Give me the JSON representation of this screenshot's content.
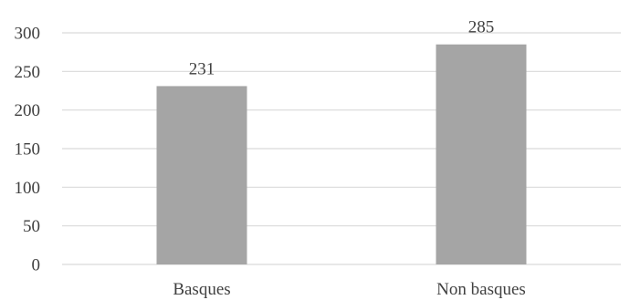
{
  "colors": {
    "bar": "#a5a5a5",
    "gridline": "#d9d9d9",
    "text": "#404040"
  },
  "chart_data": {
    "type": "bar",
    "title": "",
    "xlabel": "",
    "ylabel": "",
    "categories": [
      "Basques",
      "Non basques"
    ],
    "values": [
      231,
      285
    ],
    "data_labels": [
      "231",
      "285"
    ],
    "ylim": [
      0,
      300
    ],
    "y_ticks": [
      0,
      50,
      100,
      150,
      200,
      250,
      300
    ],
    "y_tick_labels": [
      "0",
      "50",
      "100",
      "150",
      "200",
      "250",
      "300"
    ],
    "grid": true,
    "legend": "none"
  }
}
